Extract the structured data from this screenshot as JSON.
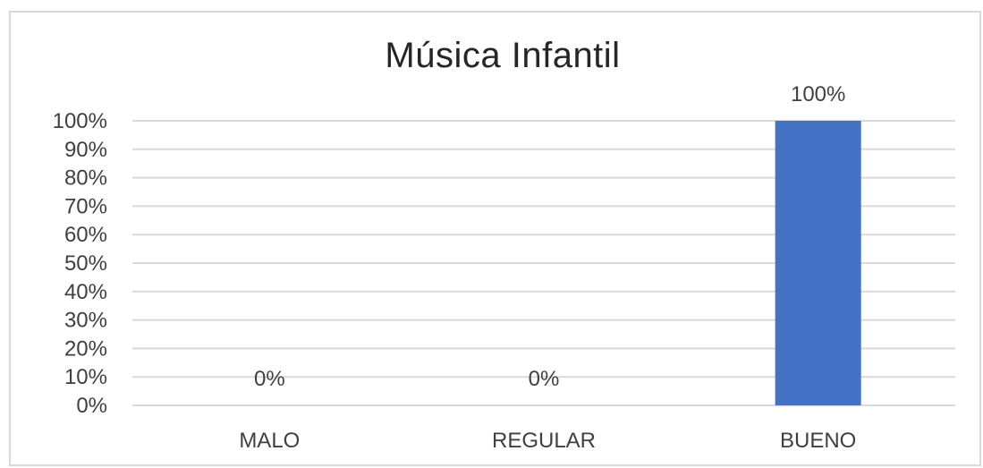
{
  "chart_data": {
    "type": "bar",
    "title": "Música Infantil",
    "categories": [
      "MALO",
      "REGULAR",
      "BUENO"
    ],
    "values": [
      0,
      0,
      100
    ],
    "data_labels": [
      "0%",
      "0%",
      "100%"
    ],
    "ylim": [
      0,
      100
    ],
    "y_ticks": [
      0,
      10,
      20,
      30,
      40,
      50,
      60,
      70,
      80,
      90,
      100
    ],
    "y_tick_labels": [
      "0%",
      "10%",
      "20%",
      "30%",
      "40%",
      "50%",
      "60%",
      "70%",
      "80%",
      "90%",
      "100%"
    ],
    "xlabel": "",
    "ylabel": "",
    "grid": true,
    "legend": "none",
    "bar_color": "#4472C4",
    "gridline_color": "#d9d9d9",
    "text_color": "#404040"
  }
}
